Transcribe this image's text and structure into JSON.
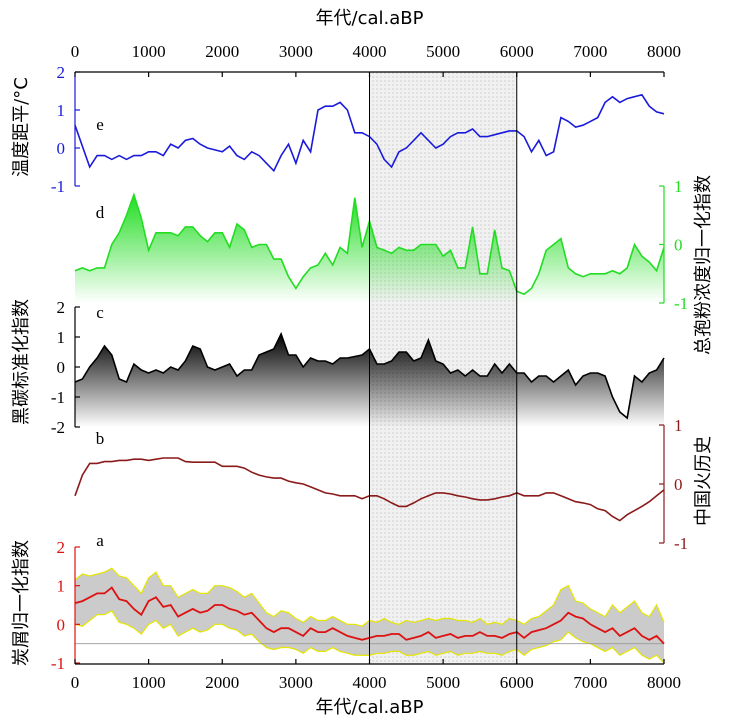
{
  "chart_data": {
    "type": "line",
    "x_axis": {
      "label": "年代/cal.aBP",
      "range": [
        0,
        8000
      ],
      "ticks": [
        0,
        1000,
        2000,
        3000,
        4000,
        5000,
        6000,
        7000,
        8000
      ]
    },
    "shaded_interval": [
      4000,
      6000
    ],
    "panels": [
      {
        "id": "e",
        "label": "e",
        "ylabel": "温度距平/°C",
        "axis_side": "left",
        "range": [
          -1,
          2
        ],
        "ticks": [
          -1,
          0,
          1,
          2
        ],
        "color": "#1a1adc",
        "style": "line",
        "x": [
          0,
          200,
          300,
          400,
          500,
          600,
          700,
          800,
          900,
          1000,
          1100,
          1200,
          1300,
          1400,
          1500,
          1600,
          1700,
          1800,
          1900,
          2000,
          2100,
          2200,
          2300,
          2400,
          2500,
          2600,
          2700,
          2800,
          2900,
          3000,
          3100,
          3200,
          3300,
          3400,
          3500,
          3600,
          3700,
          3800,
          3900,
          4000,
          4100,
          4200,
          4300,
          4400,
          4500,
          4600,
          4700,
          4800,
          4900,
          5000,
          5100,
          5200,
          5300,
          5400,
          5500,
          5600,
          5700,
          5800,
          5900,
          6000,
          6100,
          6200,
          6300,
          6400,
          6500,
          6600,
          6700,
          6800,
          6900,
          7000,
          7100,
          7200,
          7300,
          7400,
          7500,
          7600,
          7700,
          7800,
          7900,
          8000
        ],
        "y": [
          0.6,
          -0.5,
          -0.2,
          -0.2,
          -0.3,
          -0.2,
          -0.3,
          -0.2,
          -0.2,
          -0.1,
          -0.1,
          -0.2,
          0.1,
          0.0,
          0.2,
          0.25,
          0.1,
          0.0,
          -0.05,
          -0.1,
          0.05,
          -0.2,
          -0.3,
          -0.1,
          -0.2,
          -0.4,
          -0.6,
          -0.2,
          0.1,
          -0.4,
          0.2,
          -0.1,
          1.0,
          1.1,
          1.1,
          1.2,
          1.0,
          0.4,
          0.4,
          0.3,
          0.1,
          -0.3,
          -0.5,
          -0.1,
          0.0,
          0.2,
          0.4,
          0.2,
          0.0,
          0.1,
          0.3,
          0.4,
          0.4,
          0.5,
          0.3,
          0.3,
          0.35,
          0.4,
          0.45,
          0.45,
          0.3,
          -0.1,
          0.2,
          -0.2,
          -0.1,
          0.8,
          0.7,
          0.55,
          0.6,
          0.7,
          0.8,
          1.2,
          1.35,
          1.2,
          1.3,
          1.35,
          1.4,
          1.1,
          0.95,
          0.9
        ]
      },
      {
        "id": "d",
        "label": "d",
        "ylabel": "总孢粉浓度归一化指数",
        "axis_side": "right",
        "range": [
          -1,
          1
        ],
        "ticks": [
          -1,
          0,
          1
        ],
        "color": "#22dd22",
        "style": "fill",
        "x": [
          0,
          100,
          200,
          300,
          400,
          500,
          600,
          700,
          800,
          900,
          1000,
          1100,
          1200,
          1300,
          1400,
          1500,
          1600,
          1700,
          1800,
          1900,
          2000,
          2100,
          2200,
          2300,
          2400,
          2500,
          2600,
          2700,
          2800,
          2900,
          3000,
          3100,
          3200,
          3300,
          3400,
          3500,
          3600,
          3700,
          3800,
          3900,
          4000,
          4100,
          4200,
          4300,
          4400,
          4500,
          4600,
          4700,
          4800,
          4900,
          5000,
          5100,
          5200,
          5300,
          5400,
          5500,
          5600,
          5700,
          5800,
          5900,
          6000,
          6100,
          6200,
          6300,
          6400,
          6500,
          6600,
          6700,
          6800,
          6900,
          7000,
          7100,
          7200,
          7300,
          7400,
          7500,
          7600,
          7700,
          7800,
          7900,
          8000
        ],
        "y": [
          -0.45,
          -0.4,
          -0.45,
          -0.4,
          -0.4,
          0.0,
          0.2,
          0.5,
          0.85,
          0.45,
          -0.1,
          0.2,
          0.2,
          0.2,
          0.15,
          0.3,
          0.3,
          0.15,
          0.05,
          0.2,
          0.2,
          -0.05,
          0.35,
          0.25,
          -0.05,
          0.0,
          0.0,
          -0.25,
          -0.25,
          -0.55,
          -0.75,
          -0.55,
          -0.4,
          -0.35,
          -0.15,
          -0.35,
          -0.05,
          -0.15,
          0.8,
          -0.05,
          0.4,
          -0.05,
          -0.1,
          -0.15,
          -0.05,
          -0.1,
          -0.1,
          0.0,
          0.0,
          0.0,
          -0.2,
          -0.1,
          -0.4,
          -0.4,
          0.3,
          -0.5,
          -0.5,
          0.25,
          -0.4,
          -0.45,
          -0.8,
          -0.85,
          -0.75,
          -0.5,
          -0.1,
          0.0,
          0.1,
          -0.4,
          -0.5,
          -0.55,
          -0.5,
          -0.5,
          -0.5,
          -0.45,
          -0.5,
          -0.4,
          0.0,
          -0.2,
          -0.3,
          -0.45,
          -0.05
        ]
      },
      {
        "id": "c",
        "label": "c",
        "ylabel": "黑碳标准化指数",
        "axis_side": "left",
        "range": [
          -2,
          2
        ],
        "ticks": [
          -2,
          -1,
          0,
          1,
          2
        ],
        "color": "#000000",
        "style": "fill",
        "x": [
          0,
          100,
          200,
          300,
          400,
          500,
          600,
          700,
          800,
          900,
          1000,
          1100,
          1200,
          1300,
          1400,
          1500,
          1600,
          1700,
          1800,
          1900,
          2000,
          2100,
          2200,
          2300,
          2400,
          2500,
          2600,
          2700,
          2800,
          2900,
          3000,
          3100,
          3200,
          3300,
          3400,
          3500,
          3600,
          3700,
          3800,
          3900,
          4000,
          4100,
          4200,
          4300,
          4400,
          4500,
          4600,
          4700,
          4800,
          4900,
          5000,
          5100,
          5200,
          5300,
          5400,
          5500,
          5600,
          5700,
          5800,
          5900,
          6000,
          6100,
          6200,
          6300,
          6400,
          6500,
          6600,
          6700,
          6800,
          6900,
          7000,
          7100,
          7200,
          7300,
          7400,
          7500,
          7600,
          7700,
          7800,
          7900,
          8000
        ],
        "y": [
          -0.5,
          -0.4,
          0.0,
          0.3,
          0.7,
          0.4,
          -0.4,
          -0.5,
          0.1,
          -0.1,
          -0.2,
          -0.1,
          -0.2,
          0.0,
          -0.1,
          0.2,
          0.7,
          0.6,
          0.0,
          -0.1,
          0.0,
          0.1,
          -0.3,
          -0.1,
          -0.1,
          0.4,
          0.5,
          0.6,
          1.1,
          0.4,
          0.4,
          0.0,
          0.3,
          0.2,
          0.2,
          0.1,
          0.3,
          0.3,
          0.35,
          0.4,
          0.6,
          0.1,
          0.1,
          0.2,
          0.5,
          0.5,
          0.2,
          0.3,
          0.9,
          0.2,
          0.1,
          -0.2,
          -0.1,
          -0.3,
          -0.1,
          -0.3,
          -0.3,
          0.1,
          -0.2,
          0.1,
          -0.2,
          -0.2,
          -0.5,
          -0.3,
          -0.3,
          -0.5,
          -0.3,
          -0.1,
          -0.6,
          -0.3,
          -0.2,
          -0.2,
          -0.3,
          -1.0,
          -1.5,
          -1.7,
          -0.3,
          -0.5,
          -0.2,
          -0.1,
          0.3
        ]
      },
      {
        "id": "b",
        "label": "b",
        "ylabel": "中国火历史",
        "axis_side": "right",
        "range": [
          -1,
          1
        ],
        "ticks": [
          -1,
          0,
          1
        ],
        "color": "#8b1a1a",
        "style": "line",
        "x": [
          0,
          100,
          200,
          300,
          400,
          500,
          600,
          700,
          800,
          900,
          1000,
          1100,
          1200,
          1300,
          1400,
          1500,
          1600,
          1700,
          1800,
          1900,
          2000,
          2100,
          2200,
          2300,
          2400,
          2500,
          2600,
          2700,
          2800,
          2900,
          3000,
          3100,
          3200,
          3300,
          3400,
          3500,
          3600,
          3700,
          3800,
          3900,
          4000,
          4100,
          4200,
          4300,
          4400,
          4500,
          4600,
          4700,
          4800,
          4900,
          5000,
          5100,
          5200,
          5300,
          5400,
          5500,
          5600,
          5700,
          5800,
          5900,
          6000,
          6100,
          6200,
          6300,
          6400,
          6500,
          6600,
          6700,
          6800,
          6900,
          7000,
          7100,
          7200,
          7300,
          7400,
          7500,
          7600,
          7700,
          7800,
          7900,
          8000
        ],
        "y": [
          -0.2,
          0.15,
          0.35,
          0.35,
          0.38,
          0.38,
          0.4,
          0.4,
          0.42,
          0.42,
          0.4,
          0.42,
          0.44,
          0.44,
          0.44,
          0.38,
          0.37,
          0.37,
          0.37,
          0.37,
          0.3,
          0.3,
          0.3,
          0.27,
          0.2,
          0.15,
          0.12,
          0.1,
          0.1,
          0.05,
          0.02,
          0.0,
          -0.05,
          -0.1,
          -0.15,
          -0.17,
          -0.2,
          -0.2,
          -0.2,
          -0.25,
          -0.2,
          -0.2,
          -0.25,
          -0.32,
          -0.38,
          -0.38,
          -0.32,
          -0.25,
          -0.2,
          -0.15,
          -0.15,
          -0.17,
          -0.2,
          -0.22,
          -0.25,
          -0.27,
          -0.27,
          -0.25,
          -0.22,
          -0.2,
          -0.15,
          -0.2,
          -0.2,
          -0.2,
          -0.15,
          -0.15,
          -0.2,
          -0.25,
          -0.3,
          -0.32,
          -0.35,
          -0.42,
          -0.45,
          -0.55,
          -0.62,
          -0.52,
          -0.45,
          -0.38,
          -0.3,
          -0.2,
          -0.1
        ]
      },
      {
        "id": "a",
        "label": "a",
        "ylabel": "炭屑归一化指数",
        "axis_side": "left",
        "range": [
          -1,
          2
        ],
        "ticks": [
          -1,
          0,
          1,
          2
        ],
        "color": "#dd1111",
        "band_color": "#c8c8c8",
        "band_edge_color": "#e5e500",
        "baseline": -0.5,
        "style": "band",
        "x": [
          0,
          100,
          200,
          300,
          400,
          500,
          600,
          700,
          800,
          900,
          1000,
          1100,
          1200,
          1300,
          1400,
          1500,
          1600,
          1700,
          1800,
          1900,
          2000,
          2100,
          2200,
          2300,
          2400,
          2500,
          2600,
          2700,
          2800,
          2900,
          3000,
          3100,
          3200,
          3300,
          3400,
          3500,
          3600,
          3700,
          3800,
          3900,
          4000,
          4100,
          4200,
          4300,
          4400,
          4500,
          4600,
          4700,
          4800,
          4900,
          5000,
          5100,
          5200,
          5300,
          5400,
          5500,
          5600,
          5700,
          5800,
          5900,
          6000,
          6100,
          6200,
          6300,
          6400,
          6500,
          6600,
          6700,
          6800,
          6900,
          7000,
          7100,
          7200,
          7300,
          7400,
          7500,
          7600,
          7700,
          7800,
          7900,
          8000
        ],
        "y": [
          0.55,
          0.6,
          0.7,
          0.8,
          0.8,
          0.95,
          0.65,
          0.6,
          0.4,
          0.25,
          0.6,
          0.7,
          0.45,
          0.5,
          0.2,
          0.3,
          0.4,
          0.3,
          0.35,
          0.5,
          0.5,
          0.4,
          0.35,
          0.25,
          0.3,
          0.1,
          -0.1,
          -0.2,
          -0.1,
          -0.1,
          -0.2,
          -0.3,
          -0.1,
          -0.2,
          -0.2,
          -0.1,
          -0.2,
          -0.3,
          -0.35,
          -0.4,
          -0.35,
          -0.3,
          -0.3,
          -0.25,
          -0.25,
          -0.4,
          -0.35,
          -0.3,
          -0.2,
          -0.35,
          -0.3,
          -0.25,
          -0.35,
          -0.3,
          -0.3,
          -0.2,
          -0.3,
          -0.3,
          -0.35,
          -0.25,
          -0.2,
          -0.35,
          -0.2,
          -0.15,
          -0.1,
          0.0,
          0.1,
          0.3,
          0.2,
          0.15,
          0.0,
          -0.1,
          -0.2,
          -0.1,
          -0.3,
          -0.2,
          -0.1,
          -0.3,
          -0.4,
          -0.3,
          -0.5
        ],
        "upper": [
          1.15,
          1.3,
          1.25,
          1.3,
          1.35,
          1.45,
          1.25,
          1.2,
          1.0,
          0.8,
          1.2,
          1.35,
          1.0,
          1.0,
          0.7,
          0.8,
          0.9,
          0.8,
          0.8,
          1.0,
          1.0,
          0.95,
          0.85,
          0.7,
          0.8,
          0.55,
          0.3,
          0.2,
          0.35,
          0.3,
          0.15,
          0.05,
          0.2,
          0.1,
          0.1,
          0.2,
          0.1,
          0.0,
          0.0,
          -0.05,
          0.1,
          0.05,
          0.15,
          0.05,
          0.0,
          0.1,
          0.05,
          0.1,
          0.15,
          0.1,
          0.15,
          0.15,
          0.1,
          0.1,
          0.05,
          0.15,
          0.0,
          0.05,
          0.0,
          0.15,
          0.1,
          0.0,
          0.15,
          0.2,
          0.35,
          0.5,
          0.9,
          1.0,
          0.6,
          0.55,
          0.4,
          0.3,
          0.2,
          0.5,
          0.3,
          0.45,
          0.6,
          0.3,
          0.2,
          0.5,
          0.05
        ],
        "lower": [
          0.0,
          -0.05,
          0.1,
          0.25,
          0.25,
          0.35,
          0.05,
          0.0,
          -0.1,
          -0.25,
          0.0,
          0.1,
          -0.1,
          0.0,
          -0.3,
          -0.2,
          -0.1,
          -0.2,
          -0.15,
          0.0,
          0.0,
          -0.1,
          -0.15,
          -0.3,
          -0.25,
          -0.45,
          -0.6,
          -0.65,
          -0.6,
          -0.6,
          -0.65,
          -0.75,
          -0.6,
          -0.7,
          -0.7,
          -0.6,
          -0.7,
          -0.75,
          -0.8,
          -0.8,
          -0.8,
          -0.75,
          -0.75,
          -0.7,
          -0.7,
          -0.8,
          -0.8,
          -0.75,
          -0.7,
          -0.8,
          -0.75,
          -0.7,
          -0.8,
          -0.75,
          -0.75,
          -0.7,
          -0.75,
          -0.75,
          -0.8,
          -0.7,
          -0.65,
          -0.8,
          -0.65,
          -0.6,
          -0.55,
          -0.45,
          -0.4,
          -0.2,
          -0.35,
          -0.45,
          -0.5,
          -0.6,
          -0.7,
          -0.6,
          -0.8,
          -0.7,
          -0.6,
          -0.8,
          -0.9,
          -0.8,
          -1.0
        ]
      }
    ]
  }
}
